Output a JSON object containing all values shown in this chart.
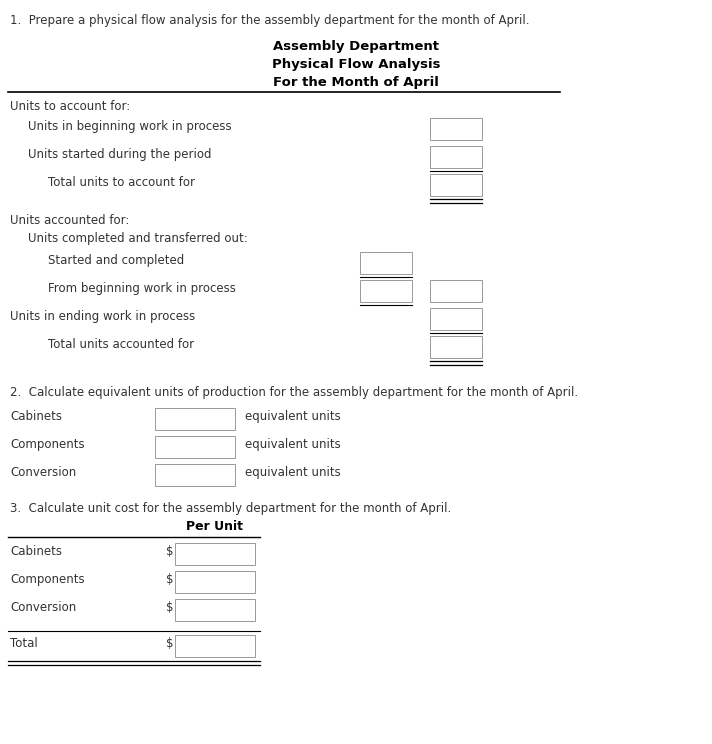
{
  "bg_color": "#ffffff",
  "title_q1": "1.  Prepare a physical flow analysis for the assembly department for the month of April.",
  "header1": "Assembly Department",
  "header2": "Physical Flow Analysis",
  "header3": "For the Month of April",
  "section1_label": "Units to account for:",
  "row1": "Units in beginning work in process",
  "row2": "Units started during the period",
  "row3": "Total units to account for",
  "section2_label": "Units accounted for:",
  "section2b_label": "Units completed and transferred out:",
  "row4": "Started and completed",
  "row5": "From beginning work in process",
  "row6": "Units in ending work in process",
  "row7": "Total units accounted for",
  "title_q2": "2.  Calculate equivalent units of production for the assembly department for the month of April.",
  "q2_row1": "Cabinets",
  "q2_row2": "Components",
  "q2_row3": "Conversion",
  "q2_suffix": "equivalent units",
  "title_q3": "3.  Calculate unit cost for the assembly department for the month of April.",
  "q3_col_header": "Per Unit",
  "q3_row1": "Cabinets",
  "q3_row2": "Components",
  "q3_row3": "Conversion",
  "q3_row4": "Total"
}
